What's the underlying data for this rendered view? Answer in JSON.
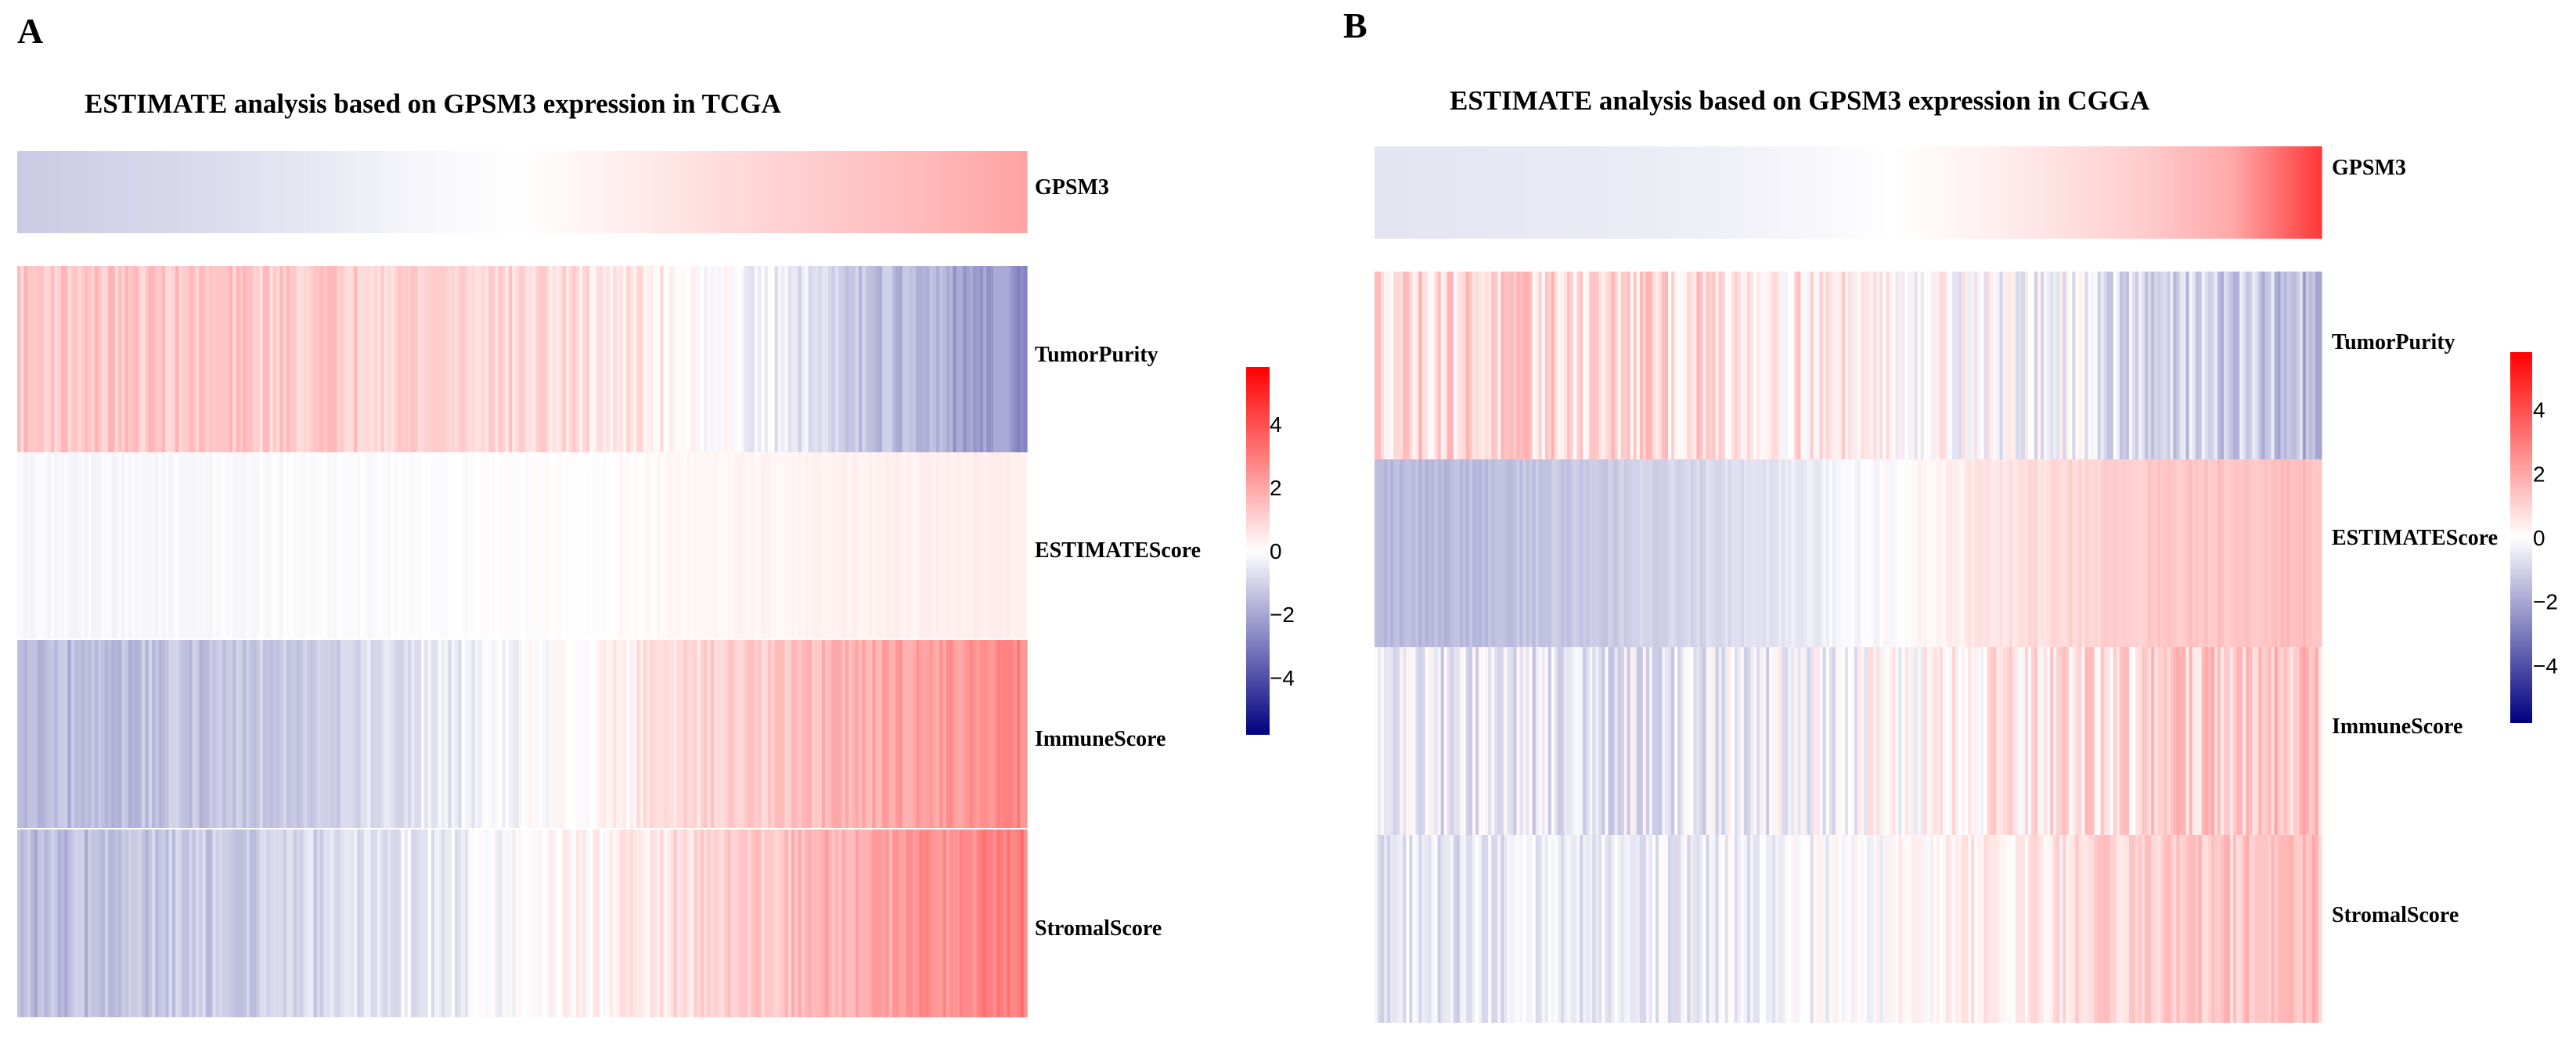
{
  "figure": {
    "background": "#ffffff",
    "colors": {
      "low": "#000080",
      "mid": "#ffffff",
      "high": "#ff0000"
    }
  },
  "chart_data": [
    {
      "type": "heatmap",
      "panel_label": "A",
      "title": "ESTIMATE analysis based on GPSM3 expression in TCGA",
      "sorted_by": "GPSM3",
      "rows": [
        "GPSM3",
        "TumorPurity",
        "ESTIMATEScore",
        "ImmuneScore",
        "StromalScore"
      ],
      "column_trend": {
        "GPSM3": [
          -1.2,
          -1.0,
          -0.8,
          -0.5,
          -0.2,
          0.0,
          0.4,
          0.8,
          1.2,
          1.6,
          2.1
        ],
        "TumorPurity": [
          1.3,
          1.3,
          1.25,
          1.2,
          1.1,
          0.9,
          0.6,
          0.0,
          -0.8,
          -1.8,
          -2.5
        ],
        "ESTIMATEScore": [
          -0.2,
          -0.18,
          -0.15,
          -0.1,
          -0.05,
          0.0,
          0.1,
          0.2,
          0.3,
          0.35,
          0.4
        ],
        "ImmuneScore": [
          -1.7,
          -1.5,
          -1.3,
          -1.0,
          -0.6,
          -0.1,
          0.4,
          1.0,
          1.6,
          2.2,
          2.7
        ],
        "StromalScore": [
          -1.6,
          -1.4,
          -1.2,
          -0.9,
          -0.5,
          -0.1,
          0.4,
          1.0,
          1.7,
          2.4,
          3.0
        ]
      },
      "noise": {
        "GPSM3": 0.0,
        "TumorPurity": 0.5,
        "ESTIMATEScore": 0.12,
        "ImmuneScore": 0.45,
        "StromalScore": 0.5
      },
      "columns": 300,
      "legend": {
        "range": [
          -5.8,
          5.8
        ],
        "ticks": [
          4,
          2,
          0,
          -2,
          -4
        ]
      }
    },
    {
      "type": "heatmap",
      "panel_label": "B",
      "title": "ESTIMATE analysis based on GPSM3 expression in CGGA",
      "sorted_by": "GPSM3",
      "rows": [
        "GPSM3",
        "TumorPurity",
        "ESTIMATEScore",
        "ImmuneScore",
        "StromalScore"
      ],
      "column_trend": {
        "GPSM3": [
          -0.6,
          -0.55,
          -0.5,
          -0.45,
          -0.35,
          -0.2,
          0.0,
          0.3,
          0.7,
          1.2,
          2.0,
          4.5
        ],
        "TumorPurity": [
          1.0,
          1.0,
          0.9,
          0.9,
          0.8,
          0.6,
          0.3,
          0.0,
          -0.4,
          -0.8,
          -1.2,
          -1.5
        ],
        "ESTIMATEScore": [
          -1.6,
          -1.5,
          -1.3,
          -1.1,
          -0.8,
          -0.4,
          0.0,
          0.5,
          0.9,
          1.2,
          1.4,
          1.5
        ],
        "ImmuneScore": [
          -0.4,
          -0.5,
          -0.5,
          -0.5,
          -0.5,
          -0.3,
          0.0,
          0.3,
          0.7,
          1.0,
          1.2,
          1.3
        ],
        "StromalScore": [
          -0.6,
          -0.6,
          -0.5,
          -0.5,
          -0.4,
          -0.2,
          0.0,
          0.3,
          0.7,
          1.1,
          1.3,
          1.4
        ]
      },
      "noise": {
        "GPSM3": 0.0,
        "TumorPurity": 0.9,
        "ESTIMATEScore": 0.25,
        "ImmuneScore": 0.9,
        "StromalScore": 0.6
      },
      "columns": 300,
      "legend": {
        "range": [
          -5.8,
          5.8
        ],
        "ticks": [
          4,
          2,
          0,
          -2,
          -4
        ]
      }
    }
  ]
}
